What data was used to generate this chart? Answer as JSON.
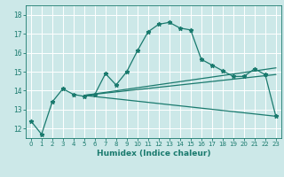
{
  "xlabel": "Humidex (Indice chaleur)",
  "background_color": "#cce8e8",
  "grid_color": "#ffffff",
  "line_color": "#1a7a6e",
  "xlim": [
    -0.5,
    23.5
  ],
  "ylim": [
    11.5,
    18.5
  ],
  "xticks": [
    0,
    1,
    2,
    3,
    4,
    5,
    6,
    7,
    8,
    9,
    10,
    11,
    12,
    13,
    14,
    15,
    16,
    17,
    18,
    19,
    20,
    21,
    22,
    23
  ],
  "yticks": [
    12,
    13,
    14,
    15,
    16,
    17,
    18
  ],
  "series1_x": [
    0,
    1,
    2,
    3,
    4,
    5,
    6,
    7,
    8,
    9,
    10,
    11,
    12,
    13,
    14,
    15,
    16,
    17,
    18,
    19,
    20,
    21,
    22,
    23
  ],
  "series1_y": [
    12.4,
    11.7,
    13.4,
    14.1,
    13.8,
    13.7,
    13.8,
    14.9,
    14.3,
    15.0,
    16.1,
    17.1,
    17.5,
    17.6,
    17.3,
    17.2,
    15.65,
    15.35,
    15.05,
    14.75,
    14.75,
    15.15,
    14.85,
    12.65
  ],
  "line1_x": [
    5,
    23
  ],
  "line1_y": [
    13.75,
    12.65
  ],
  "line2_x": [
    5,
    23
  ],
  "line2_y": [
    13.75,
    15.2
  ],
  "line3_x": [
    5,
    23
  ],
  "line3_y": [
    13.75,
    14.85
  ]
}
